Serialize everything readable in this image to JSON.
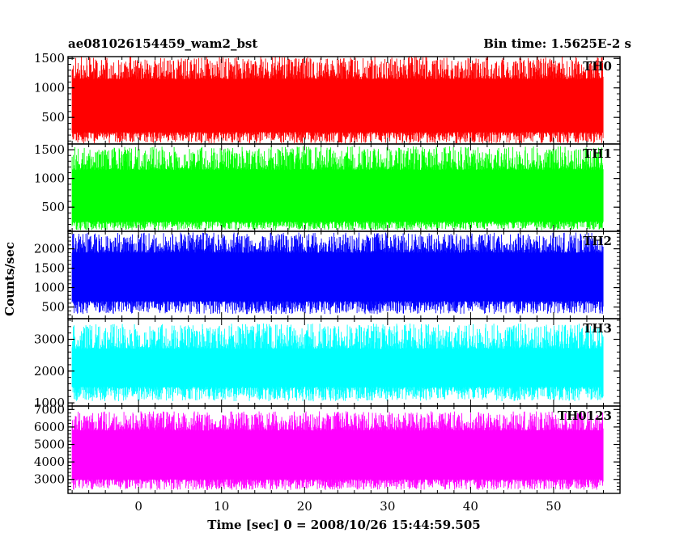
{
  "chart_data": {
    "type": "line",
    "title_left": "ae081026154459_wam2_bst",
    "title_right": "Bin time: 1.5625E-2 s",
    "xlabel": "Time [sec] 0 = 2008/10/26 15:44:59.505",
    "ylabel": "Counts/sec",
    "xlim": [
      -8.5,
      58
    ],
    "x_ticks": [
      0,
      10,
      20,
      30,
      40,
      50
    ],
    "x_tick_labels": [
      "0",
      "10",
      "20",
      "30",
      "40",
      "50"
    ],
    "x_data_range": [
      -8,
      56
    ],
    "panels": [
      {
        "name": "TH0",
        "color": "#ff0000",
        "ylim": [
          50,
          1530
        ],
        "y_ticks": [
          500,
          1000,
          1500
        ],
        "y_tick_labels": [
          "500",
          "1000",
          "1500"
        ],
        "band": {
          "low": 250,
          "high": 1150,
          "min": 60,
          "max": 1530
        }
      },
      {
        "name": "TH1",
        "color": "#00ff00",
        "ylim": [
          80,
          1600
        ],
        "y_ticks": [
          500,
          1000,
          1500
        ],
        "y_tick_labels": [
          "500",
          "1000",
          "1500"
        ],
        "band": {
          "low": 250,
          "high": 1150,
          "min": 100,
          "max": 1560
        }
      },
      {
        "name": "TH2",
        "color": "#0000ff",
        "ylim": [
          200,
          2450
        ],
        "y_ticks": [
          500,
          1000,
          1500,
          2000
        ],
        "y_tick_labels": [
          "500",
          "1000",
          "1500",
          "2000"
        ],
        "band": {
          "low": 650,
          "high": 1900,
          "min": 320,
          "max": 2420
        }
      },
      {
        "name": "TH3",
        "color": "#00ffff",
        "ylim": [
          900,
          3650
        ],
        "y_ticks": [
          1000,
          2000,
          3000
        ],
        "y_tick_labels": [
          "1000",
          "2000",
          "3000"
        ],
        "band": {
          "low": 1500,
          "high": 2700,
          "min": 1050,
          "max": 3500
        }
      },
      {
        "name": "TH0123",
        "color": "#ff00ff",
        "ylim": [
          2200,
          7200
        ],
        "y_ticks": [
          3000,
          4000,
          5000,
          6000,
          7000
        ],
        "y_tick_labels": [
          "3000",
          "4000",
          "5000",
          "6000",
          "7000"
        ],
        "band": {
          "low": 3000,
          "high": 5800,
          "min": 2400,
          "max": 6900
        }
      }
    ]
  }
}
